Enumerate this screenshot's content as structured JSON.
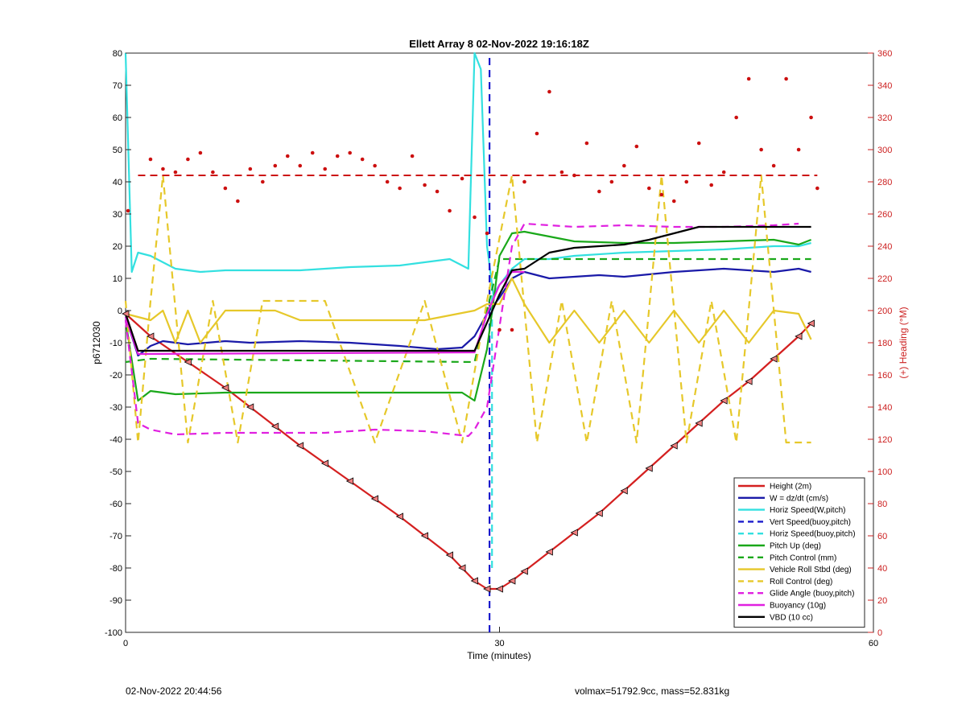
{
  "chart_data": {
    "type": "line",
    "title": "Ellett Array 8 02-Nov-2022 19:16:18Z",
    "xlabel": "Time (minutes)",
    "ylabel": "p6712030",
    "y2label": "(+) Heading (°M)",
    "xlim": [
      0,
      60
    ],
    "ylim": [
      -100,
      80
    ],
    "y2lim": [
      0,
      360
    ],
    "x_ticks": [
      "0",
      "30",
      "60"
    ],
    "y_ticks": [
      "-100",
      "-90",
      "-80",
      "-70",
      "-60",
      "-50",
      "-40",
      "-30",
      "-20",
      "-10",
      "0",
      "10",
      "20",
      "30",
      "40",
      "50",
      "60",
      "70",
      "80"
    ],
    "y2_ticks": [
      "0",
      "20",
      "40",
      "60",
      "80",
      "100",
      "120",
      "140",
      "160",
      "180",
      "200",
      "220",
      "240",
      "260",
      "280",
      "300",
      "320",
      "340",
      "360"
    ],
    "legend_position": "bottom-right",
    "grid": false,
    "series": [
      {
        "name": "Height (2m)",
        "color": "#d42020",
        "style": "solid",
        "x": [
          0,
          2,
          5,
          8,
          10,
          12,
          14,
          16,
          18,
          20,
          22,
          24,
          26,
          27,
          28,
          29,
          30,
          31,
          32,
          34,
          36,
          38,
          40,
          42,
          44,
          46,
          48,
          50,
          52,
          54,
          55
        ],
        "y": [
          -1,
          -8,
          -16,
          -24,
          -30,
          -36,
          -42,
          -47.5,
          -53,
          -58.5,
          -64,
          -70,
          -76,
          -80,
          -84,
          -86.5,
          -86.5,
          -84,
          -81,
          -75,
          -69,
          -63,
          -56,
          -49,
          -42,
          -35,
          -28,
          -22,
          -15,
          -8,
          -4
        ]
      },
      {
        "name": "W = dz/dt (cm/s)",
        "color": "#1a1aa8",
        "style": "solid",
        "x": [
          0,
          1,
          2,
          3,
          5,
          8,
          10,
          14,
          18,
          22,
          25,
          27,
          28,
          29,
          30,
          31,
          32,
          34,
          36,
          38,
          40,
          44,
          48,
          52,
          54,
          55
        ],
        "y": [
          -2,
          -14,
          -11,
          -9.5,
          -10.5,
          -9.5,
          -10,
          -9.5,
          -10,
          -11,
          -12,
          -11.5,
          -8,
          -1,
          4,
          10,
          12,
          10,
          10.5,
          11,
          10.5,
          12,
          13,
          12,
          13,
          12
        ]
      },
      {
        "name": "Horiz Speed(W,pitch)",
        "color": "#33e0e0",
        "style": "solid",
        "x": [
          0,
          0.5,
          1,
          2,
          4,
          6,
          8,
          10,
          14,
          18,
          22,
          26,
          27.5,
          28,
          28.5,
          29,
          29.5,
          30,
          31,
          32,
          34,
          36,
          40,
          44,
          48,
          52,
          54,
          55
        ],
        "y": [
          80,
          12,
          18,
          17,
          13,
          12,
          12.5,
          12.5,
          12.5,
          13.5,
          14,
          16,
          13,
          80,
          75,
          20,
          5,
          8,
          13,
          16,
          16,
          17,
          18,
          18.5,
          19,
          20,
          20,
          21
        ]
      },
      {
        "name": "Vert Speed(buoy,pitch)",
        "color": "#1a1acc",
        "style": "dashed",
        "x": [
          29.2,
          29.2
        ],
        "y": [
          -100,
          80
        ]
      },
      {
        "name": "Horiz Speed(buoy,pitch)",
        "color": "#33e0e0",
        "style": "dashed",
        "x": [
          29.4,
          29.4
        ],
        "y": [
          -80,
          10
        ]
      },
      {
        "name": "Pitch Up (deg)",
        "color": "#1aa81a",
        "style": "solid",
        "x": [
          0,
          1,
          2,
          4,
          8,
          12,
          16,
          20,
          24,
          27,
          28,
          29,
          30,
          31,
          32,
          36,
          40,
          44,
          48,
          52,
          54,
          55
        ],
        "y": [
          -3,
          -28,
          -25,
          -26,
          -25.5,
          -25.5,
          -25.5,
          -25.5,
          -25.5,
          -25.5,
          -28,
          -12,
          17,
          24,
          24.5,
          21.5,
          21,
          21,
          21.5,
          22,
          20.5,
          22
        ]
      },
      {
        "name": "Pitch Control (mm)",
        "color": "#1aa81a",
        "style": "dashed",
        "x": [
          0,
          2,
          28,
          30,
          32,
          55
        ],
        "y": [
          -16,
          -15,
          -16,
          16,
          16,
          16
        ]
      },
      {
        "name": "Vehicle Roll Stbd (deg)",
        "color": "#e6c82a",
        "style": "solid",
        "x": [
          0,
          2,
          3,
          4,
          5,
          6,
          8,
          10,
          12,
          14,
          16,
          20,
          24,
          28,
          29,
          30,
          31,
          32,
          34,
          36,
          38,
          40,
          42,
          44,
          46,
          48,
          50,
          52,
          54,
          55
        ],
        "y": [
          -1,
          -3,
          0,
          -10,
          0,
          -10,
          0,
          0,
          0,
          -3,
          -3,
          -3,
          -3,
          0,
          2,
          2,
          10,
          2,
          -10,
          0,
          -10,
          0,
          -10,
          0,
          -10,
          0,
          -10,
          0,
          -1,
          -9
        ]
      },
      {
        "name": "Roll Control (deg)",
        "color": "#e6c82a",
        "style": "dashed",
        "x": [
          0,
          1,
          2,
          3,
          5,
          7,
          9,
          11,
          14,
          16,
          20,
          24,
          27,
          29,
          31,
          33,
          35,
          37,
          39,
          41,
          43,
          45,
          47,
          49,
          51,
          53,
          55
        ],
        "y": [
          3,
          -41,
          3,
          42,
          -41,
          3,
          -41,
          3,
          3,
          3,
          -41,
          3,
          -41,
          3,
          42,
          -41,
          3,
          -41,
          3,
          -41,
          42,
          -41,
          3,
          -41,
          42,
          -41,
          -41
        ]
      },
      {
        "name": "Glide Angle (buoy,pitch)",
        "color": "#e020e0",
        "style": "dashed",
        "x": [
          0,
          1,
          2,
          4,
          8,
          12,
          16,
          20,
          24,
          27.5,
          28,
          29,
          30,
          31,
          32,
          36,
          40,
          44,
          48,
          52,
          54
        ],
        "y": [
          -3,
          -35,
          -37,
          -38.5,
          -38,
          -38,
          -38,
          -37,
          -37.5,
          -39,
          -37,
          -30,
          -5,
          20,
          27,
          26,
          26.5,
          26,
          26,
          26.5,
          27
        ]
      },
      {
        "name": "Buoyancy (10g)",
        "color": "#e020e0",
        "style": "solid",
        "x": [
          0,
          1,
          28,
          29,
          30,
          31,
          32
        ],
        "y": [
          -2,
          -13.5,
          -13,
          -1,
          8,
          12,
          12
        ]
      },
      {
        "name": "VBD (10 cc)",
        "color": "#000000",
        "style": "solid",
        "x": [
          0,
          1,
          28,
          30,
          31,
          32,
          34,
          36,
          38,
          40,
          42,
          44,
          46,
          48,
          50,
          52,
          55
        ],
        "y": [
          -1,
          -12.5,
          -12.5,
          5,
          12.5,
          13,
          18,
          19.5,
          20,
          20.5,
          22,
          24,
          26,
          26,
          26,
          26,
          26
        ]
      }
    ],
    "heading_reference_y2": 284,
    "heading_points_y2": [
      {
        "x": 0.2,
        "y": 262
      },
      {
        "x": 2,
        "y": 294
      },
      {
        "x": 3,
        "y": 288
      },
      {
        "x": 4,
        "y": 286
      },
      {
        "x": 5,
        "y": 294
      },
      {
        "x": 6,
        "y": 298
      },
      {
        "x": 7,
        "y": 286
      },
      {
        "x": 8,
        "y": 276
      },
      {
        "x": 9,
        "y": 268
      },
      {
        "x": 10,
        "y": 288
      },
      {
        "x": 11,
        "y": 280
      },
      {
        "x": 12,
        "y": 290
      },
      {
        "x": 13,
        "y": 296
      },
      {
        "x": 14,
        "y": 290
      },
      {
        "x": 15,
        "y": 298
      },
      {
        "x": 16,
        "y": 288
      },
      {
        "x": 17,
        "y": 296
      },
      {
        "x": 18,
        "y": 298
      },
      {
        "x": 19,
        "y": 294
      },
      {
        "x": 20,
        "y": 290
      },
      {
        "x": 21,
        "y": 280
      },
      {
        "x": 22,
        "y": 276
      },
      {
        "x": 23,
        "y": 296
      },
      {
        "x": 24,
        "y": 278
      },
      {
        "x": 25,
        "y": 274
      },
      {
        "x": 26,
        "y": 262
      },
      {
        "x": 27,
        "y": 282
      },
      {
        "x": 28,
        "y": 258
      },
      {
        "x": 29,
        "y": 248
      },
      {
        "x": 30,
        "y": 188
      },
      {
        "x": 31,
        "y": 188
      },
      {
        "x": 32,
        "y": 280
      },
      {
        "x": 33,
        "y": 310
      },
      {
        "x": 34,
        "y": 336
      },
      {
        "x": 35,
        "y": 286
      },
      {
        "x": 36,
        "y": 284
      },
      {
        "x": 37,
        "y": 304
      },
      {
        "x": 38,
        "y": 274
      },
      {
        "x": 39,
        "y": 280
      },
      {
        "x": 40,
        "y": 290
      },
      {
        "x": 41,
        "y": 302
      },
      {
        "x": 42,
        "y": 276
      },
      {
        "x": 43,
        "y": 272
      },
      {
        "x": 44,
        "y": 268
      },
      {
        "x": 45,
        "y": 280
      },
      {
        "x": 46,
        "y": 304
      },
      {
        "x": 47,
        "y": 278
      },
      {
        "x": 48,
        "y": 286
      },
      {
        "x": 49,
        "y": 320
      },
      {
        "x": 50,
        "y": 344
      },
      {
        "x": 51,
        "y": 300
      },
      {
        "x": 52,
        "y": 290
      },
      {
        "x": 53,
        "y": 344
      },
      {
        "x": 54,
        "y": 300
      },
      {
        "x": 55,
        "y": 320
      },
      {
        "x": 55.5,
        "y": 276
      }
    ]
  },
  "footer": {
    "left": "02-Nov-2022 20:44:56",
    "right": "volmax=51792.9cc, mass=52.831kg"
  }
}
